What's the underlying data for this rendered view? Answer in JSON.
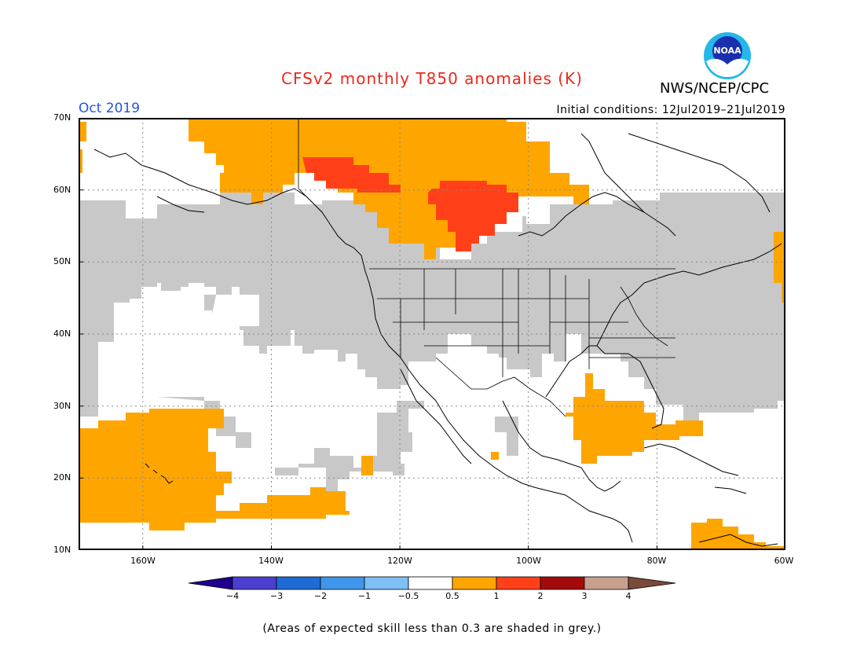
{
  "header": {
    "title": "CFSv2 monthly T850 anomalies (K)",
    "agency": "NWS/NCEP/CPC",
    "valid_month": "Oct 2019",
    "initial_conditions": "Initial conditions: 12Jul2019–21Jul2019"
  },
  "map": {
    "lat_labels": [
      "70N",
      "60N",
      "50N",
      "40N",
      "30N",
      "20N",
      "10N"
    ],
    "lon_labels": [
      "160W",
      "140W",
      "120W",
      "100W",
      "80W",
      "60W"
    ],
    "lat_range": [
      10,
      70
    ],
    "lon_range": [
      -170,
      -60
    ],
    "regions": [
      {
        "category": "skill_below_0.3",
        "color": "#c8c8c8",
        "description_visible": false
      },
      {
        "category": "0.5 to 1",
        "color": "#ffa500"
      },
      {
        "category": "1 to 2",
        "color": "#ff4019"
      }
    ]
  },
  "colorbar": {
    "labels": [
      "−4",
      "−3",
      "−2",
      "−1",
      "−0.5",
      "0.5",
      "1",
      "2",
      "3",
      "4"
    ],
    "colors": [
      "#1e008c",
      "#4a3fd0",
      "#1f6bd6",
      "#3f96ea",
      "#7fbff4",
      "#ffffff",
      "#ffa500",
      "#ff4019",
      "#a50a0a",
      "#c8a090",
      "#7a4a3a"
    ]
  },
  "footnote": "(Areas of expected skill less than 0.3 are shaded in grey.)",
  "logo": {
    "text": "NOAA",
    "icon": "noaa-logo-icon"
  }
}
